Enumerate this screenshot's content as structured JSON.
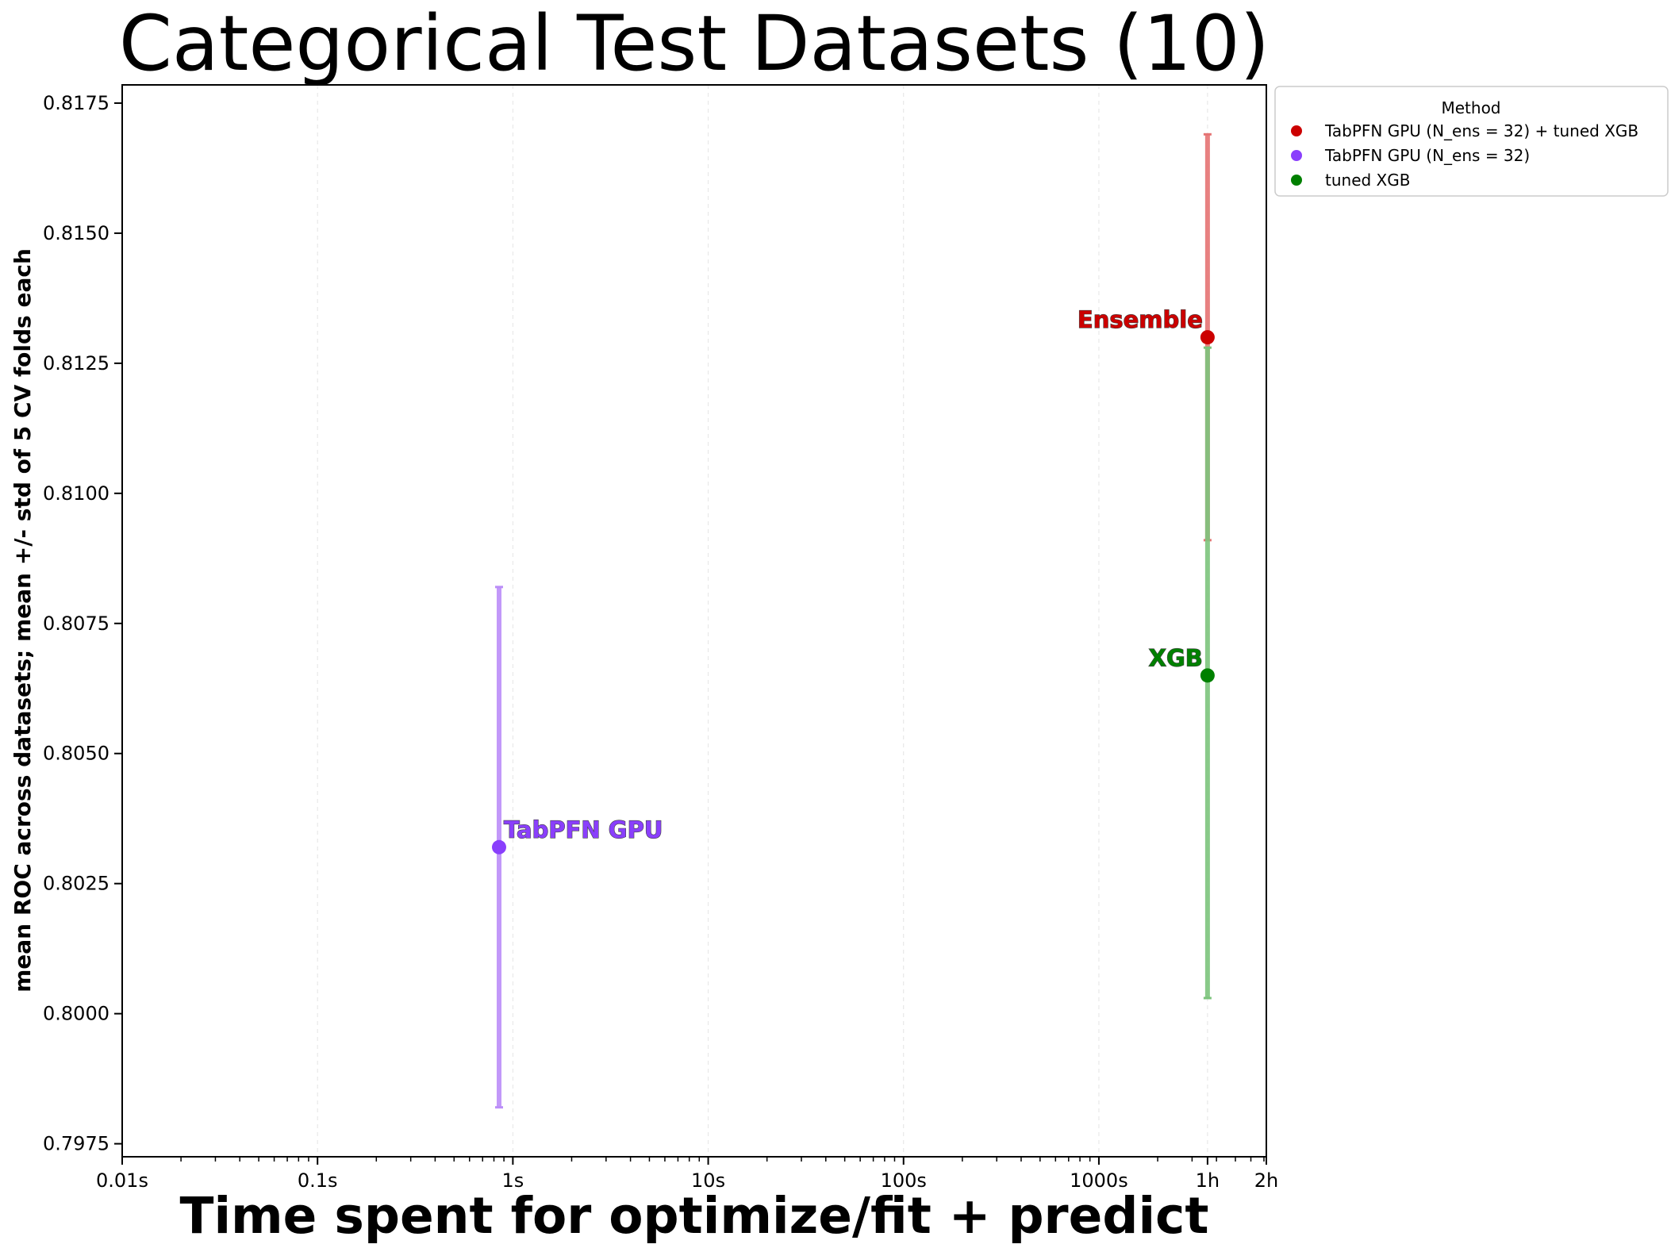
{
  "chart_data": {
    "type": "scatter",
    "title": "Categorical Test Datasets (10)",
    "xlabel": "Time spent for optimize/fit + predict",
    "ylabel": "mean ROC across datasets; mean +/- std of 5 CV folds each",
    "x_scale": "log",
    "x_unit": "seconds",
    "xlim": [
      0.01,
      7200
    ],
    "ylim": [
      0.79725,
      0.81785
    ],
    "x_ticks": [
      {
        "value": 0.01,
        "label": "0.01s"
      },
      {
        "value": 0.1,
        "label": "0.1s"
      },
      {
        "value": 1,
        "label": "1s"
      },
      {
        "value": 10,
        "label": "10s"
      },
      {
        "value": 100,
        "label": "100s"
      },
      {
        "value": 1000,
        "label": "1000s"
      },
      {
        "value": 3600,
        "label": "1h"
      },
      {
        "value": 7200,
        "label": "2h"
      }
    ],
    "y_ticks": [
      {
        "value": 0.7975,
        "label": "0.7975"
      },
      {
        "value": 0.8,
        "label": "0.8000"
      },
      {
        "value": 0.8025,
        "label": "0.8025"
      },
      {
        "value": 0.805,
        "label": "0.8050"
      },
      {
        "value": 0.8075,
        "label": "0.8075"
      },
      {
        "value": 0.81,
        "label": "0.8100"
      },
      {
        "value": 0.8125,
        "label": "0.8125"
      },
      {
        "value": 0.815,
        "label": "0.8150"
      },
      {
        "value": 0.8175,
        "label": "0.8175"
      }
    ],
    "grid": true,
    "legend": {
      "title": "Method",
      "placement": "outside top-right"
    },
    "series": [
      {
        "name": "TabPFN GPU (N_ens =  32) + tuned XGB",
        "label": "Ensemble",
        "label_side": "left",
        "color": "#cc0000",
        "bar_color": "#e57373",
        "x": 3600,
        "y": 0.813,
        "y_low": 0.8091,
        "y_high": 0.8169
      },
      {
        "name": "TabPFN GPU (N_ens = 32)",
        "label": "TabPFN GPU",
        "label_side": "right",
        "color": "#8a3ffc",
        "bar_color": "#bb8df8",
        "x": 0.85,
        "y": 0.8032,
        "y_low": 0.7982,
        "y_high": 0.8082
      },
      {
        "name": "tuned XGB",
        "label": "XGB",
        "label_side": "left",
        "color": "#008000",
        "bar_color": "#7cc47c",
        "x": 3600,
        "y": 0.8065,
        "y_low": 0.8003,
        "y_high": 0.8128
      }
    ]
  }
}
